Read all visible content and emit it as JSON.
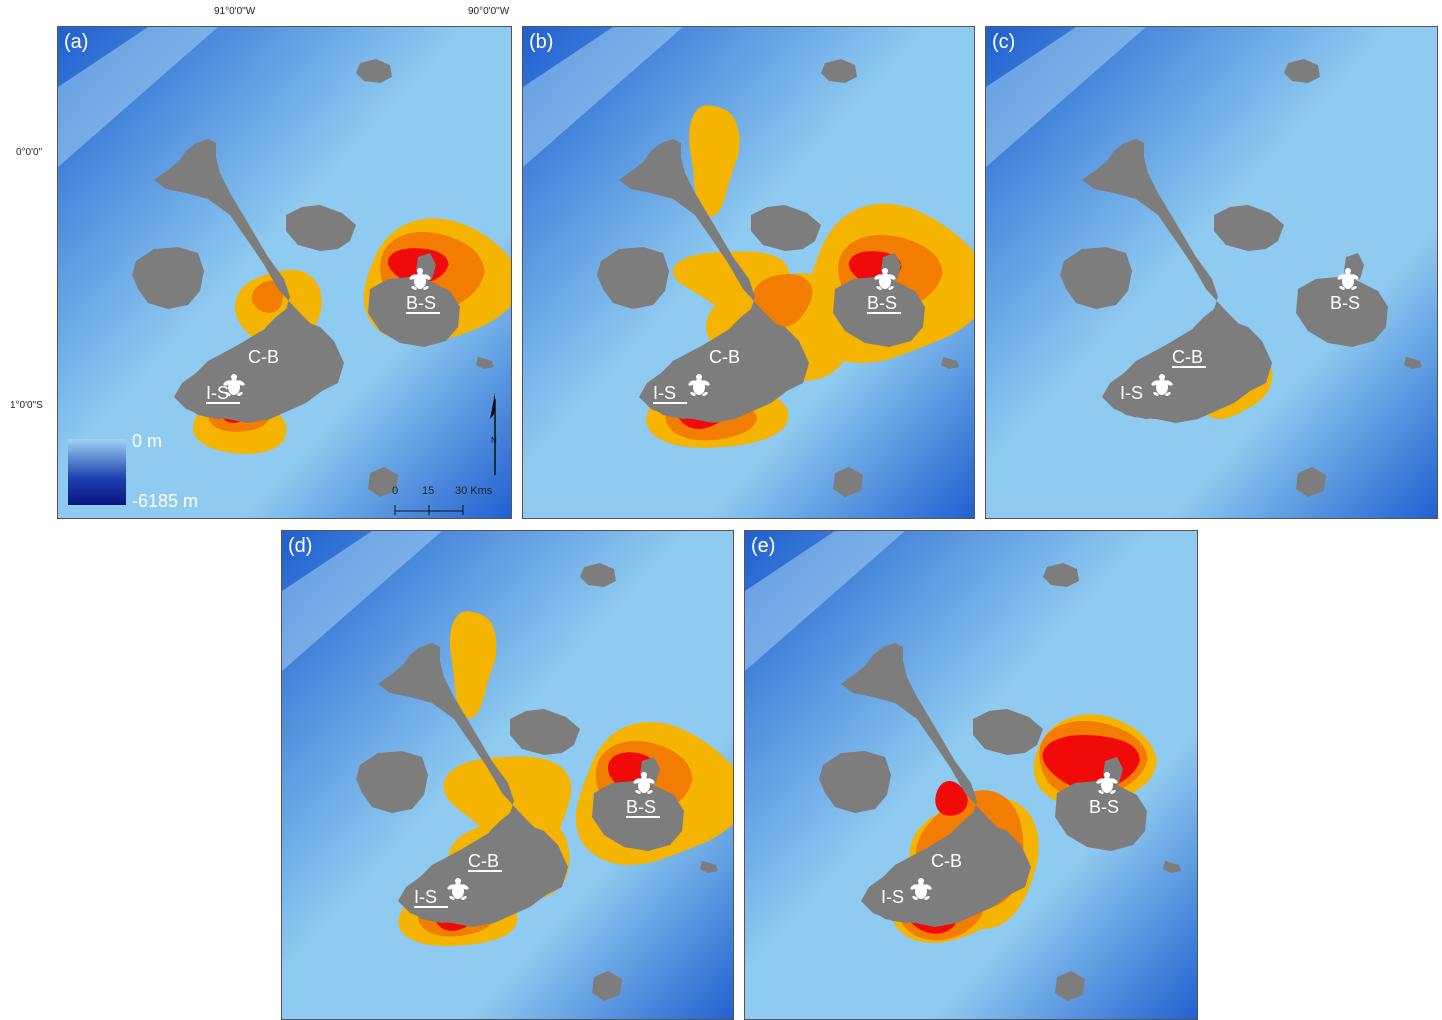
{
  "axes": {
    "lon_labels": [
      "91°0'0\"W",
      "90°0'0\"W"
    ],
    "lat_labels": [
      "0°0'0\"",
      "1°0'0\"S"
    ]
  },
  "legend": {
    "max_label": "0 m",
    "min_label": "-6185 m"
  },
  "scale": {
    "ticks": [
      "0",
      "15",
      "30 Kms"
    ]
  },
  "north_arrow": {
    "label": "N"
  },
  "sites": {
    "isabela_south": "I-S",
    "cape_berkeley": "C-B",
    "baltra_santa_cruz": "B-S"
  },
  "panels": [
    {
      "letter": "(a)",
      "underlined": [
        "I-S",
        "B-S"
      ]
    },
    {
      "letter": "(b)",
      "underlined": [
        "I-S",
        "B-S"
      ]
    },
    {
      "letter": "(c)",
      "underlined": [
        "C-B"
      ]
    },
    {
      "letter": "(d)",
      "underlined": [
        "I-S",
        "C-B",
        "B-S"
      ]
    },
    {
      "letter": "(e)",
      "underlined": []
    }
  ],
  "colors": {
    "ocean_light": "#8fcaf0",
    "ocean_dark": "#1f5fcf",
    "land": "#7d7d7d",
    "density_low": "#f4b400",
    "density_mid": "#f27d00",
    "density_high": "#f10a0a",
    "turtle": "#ffffff"
  }
}
